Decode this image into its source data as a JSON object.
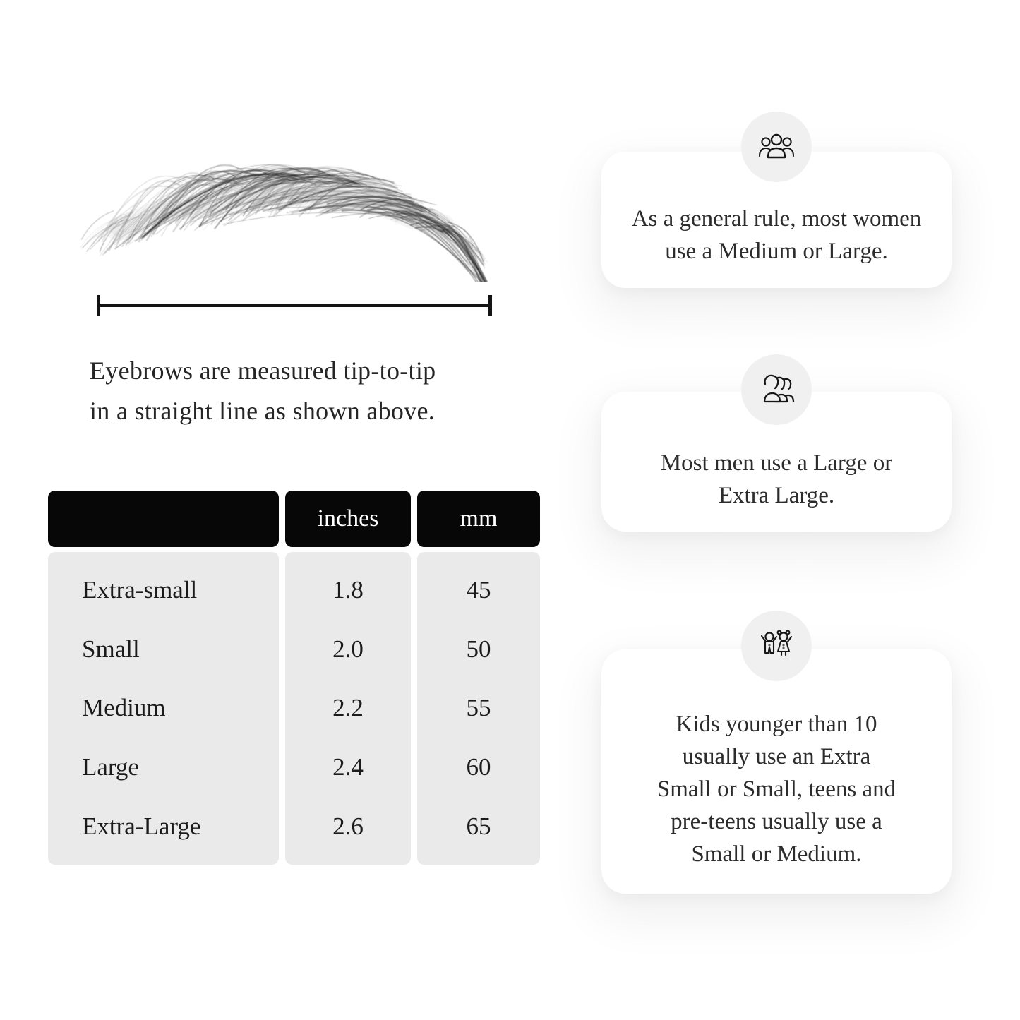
{
  "measurement": {
    "caption_lines": [
      "Eyebrows are measured tip-to-tip",
      "in a straight line as shown above."
    ]
  },
  "size_table": {
    "columns": [
      "",
      "inches",
      "mm"
    ],
    "rows": [
      {
        "label": "Extra-small",
        "inches": "1.8",
        "mm": "45"
      },
      {
        "label": "Small",
        "inches": "2.0",
        "mm": "50"
      },
      {
        "label": "Medium",
        "inches": "2.2",
        "mm": "55"
      },
      {
        "label": "Large",
        "inches": "2.4",
        "mm": "60"
      },
      {
        "label": "Extra-Large",
        "inches": "2.6",
        "mm": "65"
      }
    ]
  },
  "cards": [
    {
      "icon": "women-group-icon",
      "lines": [
        "As a general rule, most women",
        "use a Medium or Large."
      ]
    },
    {
      "icon": "men-group-icon",
      "lines": [
        "Most men use a Large or",
        "Extra Large."
      ]
    },
    {
      "icon": "kids-icon",
      "lines": [
        "Kids younger than 10",
        "usually use an Extra",
        "Small or Small, teens and",
        "pre-teens usually use a",
        "Small or Medium."
      ]
    }
  ],
  "colors": {
    "table_header_bg": "#070707",
    "table_header_text": "#ffffff",
    "table_body_bg": "#eaeaea",
    "card_bg": "#ffffff",
    "icon_circle_bg": "#f0f0f0",
    "ink": "#1a1a1a"
  },
  "chart_data": {
    "type": "table",
    "columns": [
      "",
      "inches",
      "mm"
    ],
    "rows": [
      [
        "Extra-small",
        1.8,
        45
      ],
      [
        "Small",
        2.0,
        50
      ],
      [
        "Medium",
        2.2,
        55
      ],
      [
        "Large",
        2.4,
        60
      ],
      [
        "Extra-Large",
        2.6,
        65
      ]
    ]
  }
}
